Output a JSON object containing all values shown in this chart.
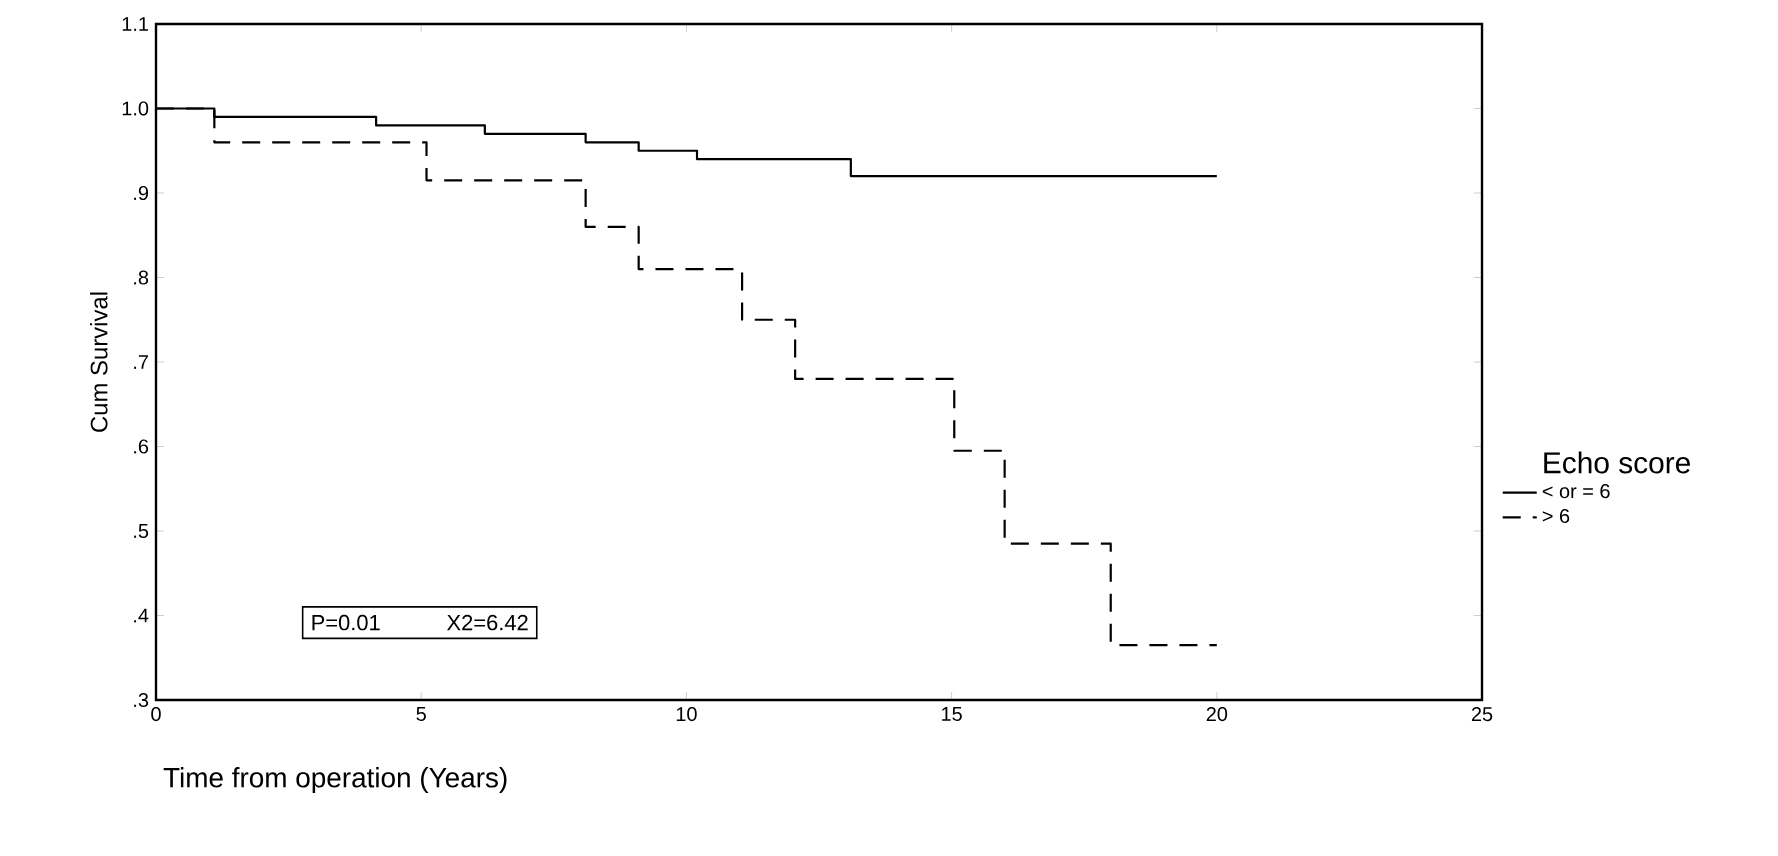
{
  "chart_data": {
    "type": "step",
    "xlabel": "Time from operation (Years)",
    "ylabel": "Cum Survival",
    "legend_title": "Echo score",
    "legend": "right",
    "xlim": [
      0,
      25
    ],
    "xticks": [
      0,
      5,
      10,
      15,
      20,
      25
    ],
    "ylim": [
      0.3,
      1.1
    ],
    "yticks": [
      {
        "value": 0.3,
        "label": ".3"
      },
      {
        "value": 0.4,
        "label": ".4"
      },
      {
        "value": 0.5,
        "label": ".5"
      },
      {
        "value": 0.6,
        "label": ".6"
      },
      {
        "value": 0.7,
        "label": ".7"
      },
      {
        "value": 0.8,
        "label": ".8"
      },
      {
        "value": 0.9,
        "label": ".9"
      },
      {
        "value": 1.0,
        "label": "1.0"
      },
      1.1
    ],
    "grid": false,
    "marker": "none",
    "annotations": [
      "P=0.01",
      "X2=6.42"
    ],
    "series": [
      {
        "name": "< or = 6",
        "color": "#000000",
        "line_style": "solid",
        "x": [
          0,
          1.1,
          4.15,
          6.2,
          8.1,
          9.1,
          10.2,
          13.1,
          20
        ],
        "values": [
          1.0,
          0.99,
          0.98,
          0.97,
          0.96,
          0.95,
          0.94,
          0.92,
          0.92
        ]
      },
      {
        "name": "> 6",
        "color": "#000000",
        "line_style": "dashed",
        "x": [
          0,
          1.1,
          5.1,
          8.1,
          9.1,
          11.05,
          12.05,
          15.05,
          16,
          18,
          20
        ],
        "values": [
          1.0,
          0.96,
          0.915,
          0.86,
          0.81,
          0.75,
          0.68,
          0.595,
          0.485,
          0.365,
          0.365
        ]
      }
    ]
  }
}
